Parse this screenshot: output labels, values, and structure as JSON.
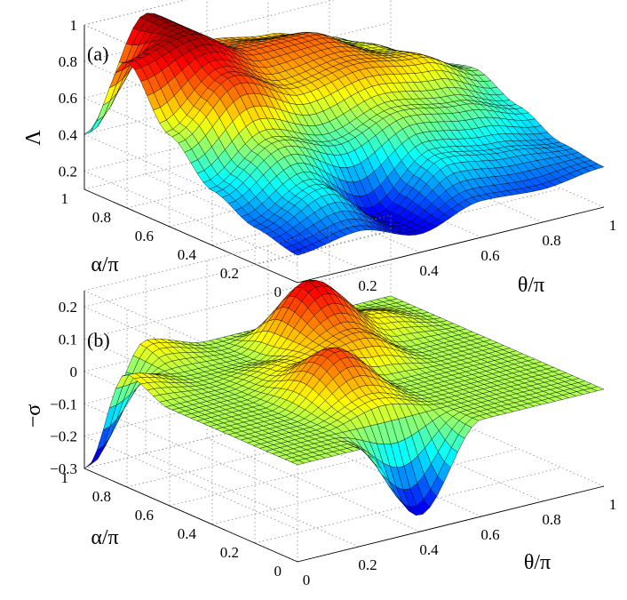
{
  "chart_data": [
    {
      "type": "surface",
      "panel_label": "(a)",
      "xlabel": "θ/π",
      "ylabel": "α/π",
      "zlabel": "Λ",
      "xlim": [
        0,
        1
      ],
      "ylim": [
        0,
        1
      ],
      "zlim": [
        0.1,
        1
      ],
      "x_ticks": [
        "0",
        "0.2",
        "0.4",
        "0.6",
        "0.8",
        "1"
      ],
      "y_ticks": [
        "0",
        "0.2",
        "0.4",
        "0.6",
        "0.8",
        "1"
      ],
      "z_ticks": [
        "0.2",
        "0.4",
        "0.6",
        "0.8",
        "1"
      ],
      "x": [
        0,
        0.2,
        0.4,
        0.6,
        0.8,
        1
      ],
      "y": [
        0,
        0.2,
        0.4,
        0.6,
        0.8,
        1
      ],
      "z": [
        [
          0.25,
          0.3,
          0.2,
          0.3,
          0.28,
          0.32
        ],
        [
          0.3,
          0.45,
          0.2,
          0.45,
          0.4,
          0.35
        ],
        [
          0.4,
          0.6,
          0.5,
          0.6,
          0.55,
          0.45
        ],
        [
          0.6,
          0.85,
          0.7,
          0.75,
          0.7,
          0.55
        ],
        [
          0.9,
          0.97,
          0.8,
          0.8,
          0.65,
          0.5
        ],
        [
          0.4,
          0.98,
          0.75,
          0.7,
          0.6,
          0.4
        ]
      ],
      "colormap": "jet",
      "grid": true
    },
    {
      "type": "surface",
      "panel_label": "(b)",
      "xlabel": "θ/π",
      "ylabel": "α/π",
      "zlabel": "−σ",
      "xlim": [
        0,
        1
      ],
      "ylim": [
        0,
        1
      ],
      "zlim": [
        -0.3,
        0.25
      ],
      "x_ticks": [
        "0",
        "0.2",
        "0.4",
        "0.6",
        "0.8",
        "1"
      ],
      "y_ticks": [
        "0",
        "0.2",
        "0.4",
        "0.6",
        "0.8",
        "1"
      ],
      "z_ticks": [
        "0.2",
        "0.1",
        "0",
        "−0.1",
        "−0.2",
        "−0.3"
      ],
      "x": [
        0,
        0.2,
        0.4,
        0.6,
        0.8,
        1
      ],
      "y": [
        0,
        0.2,
        0.4,
        0.6,
        0.8,
        1
      ],
      "z": [
        [
          0.0,
          0.0,
          -0.25,
          0.0,
          0.0,
          0.0
        ],
        [
          0.0,
          0.0,
          0.05,
          0.0,
          0.0,
          0.0
        ],
        [
          0.0,
          0.0,
          0.15,
          0.0,
          0.0,
          0.0
        ],
        [
          0.0,
          0.0,
          0.05,
          0.1,
          0.0,
          0.0
        ],
        [
          0.05,
          0.0,
          0.0,
          0.2,
          0.05,
          0.0
        ],
        [
          -0.3,
          0.05,
          0.0,
          0.0,
          0.0,
          0.0
        ]
      ],
      "colormap": "jet",
      "grid": true
    }
  ]
}
